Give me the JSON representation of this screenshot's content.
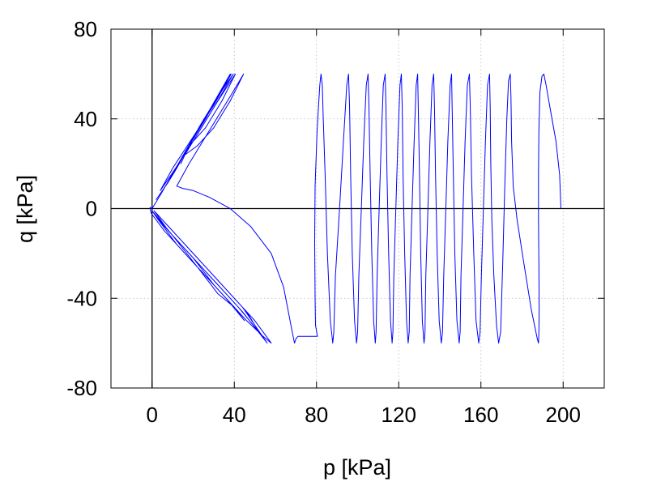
{
  "chart_data": {
    "type": "line",
    "xlabel": "p [kPa]",
    "ylabel": "q [kPa]",
    "xlim": [
      -20,
      220
    ],
    "ylim": [
      -80,
      80
    ],
    "x_ticks": [
      0,
      40,
      80,
      120,
      160,
      200
    ],
    "y_ticks": [
      -80,
      -40,
      0,
      40,
      80
    ],
    "x_tick_labels": [
      "0",
      "40",
      "80",
      "120",
      "160",
      "200"
    ],
    "y_tick_labels": [
      "-80",
      "-40",
      "0",
      "40",
      "80"
    ],
    "grid": true,
    "zero_lines": true,
    "line_color": "#0000ff",
    "series": [
      {
        "values": [
          [
            198.9,
            0
          ],
          [
            198.3,
            15
          ],
          [
            196.5,
            30
          ],
          [
            193.6,
            45
          ],
          [
            191.7,
            55
          ],
          [
            190.6,
            60
          ],
          [
            189.7,
            59
          ],
          [
            188.7,
            52
          ],
          [
            188.2,
            35
          ],
          [
            188.0,
            15
          ],
          [
            188.0,
            -5
          ],
          [
            188.2,
            -25
          ],
          [
            188.3,
            -45
          ],
          [
            188.2,
            -55
          ],
          [
            188.0,
            -60
          ],
          [
            187.4,
            -58
          ],
          [
            184.5,
            -45
          ],
          [
            181.0,
            -25
          ],
          [
            177.6,
            -5
          ],
          [
            175.7,
            10
          ],
          [
            174.9,
            30
          ],
          [
            174.6,
            50
          ],
          [
            174.3,
            60
          ],
          [
            173.4,
            57
          ],
          [
            172.6,
            40
          ],
          [
            171.6,
            10
          ],
          [
            170.6,
            -25
          ],
          [
            169.6,
            -55
          ],
          [
            168.6,
            -60
          ],
          [
            167.6,
            -52
          ],
          [
            166.3,
            -30
          ],
          [
            165.3,
            -5
          ],
          [
            164.8,
            20
          ],
          [
            164.5,
            45
          ],
          [
            164.2,
            60
          ],
          [
            163.2,
            55
          ],
          [
            162.2,
            30
          ],
          [
            161.2,
            0
          ],
          [
            160.2,
            -30
          ],
          [
            159.6,
            -55
          ],
          [
            158.9,
            -60
          ],
          [
            157.6,
            -50
          ],
          [
            156.5,
            -20
          ],
          [
            155.4,
            15
          ],
          [
            154.8,
            45
          ],
          [
            154.4,
            60
          ],
          [
            153.4,
            55
          ],
          [
            152.3,
            30
          ],
          [
            151.3,
            0
          ],
          [
            150.3,
            -30
          ],
          [
            149.9,
            -55
          ],
          [
            149.4,
            -60
          ],
          [
            148.3,
            -50
          ],
          [
            147.3,
            -20
          ],
          [
            146.6,
            15
          ],
          [
            146.0,
            45
          ],
          [
            145.7,
            60
          ],
          [
            145.0,
            55
          ],
          [
            143.9,
            30
          ],
          [
            142.9,
            0
          ],
          [
            141.9,
            -30
          ],
          [
            141.3,
            -55
          ],
          [
            140.7,
            -60
          ],
          [
            139.7,
            -50
          ],
          [
            138.7,
            -20
          ],
          [
            137.9,
            15
          ],
          [
            137.4,
            45
          ],
          [
            137.0,
            60
          ],
          [
            136.2,
            55
          ],
          [
            135.2,
            30
          ],
          [
            134.2,
            0
          ],
          [
            133.2,
            -30
          ],
          [
            132.8,
            -55
          ],
          [
            132.3,
            -60
          ],
          [
            131.5,
            -50
          ],
          [
            130.7,
            -20
          ],
          [
            130.1,
            15
          ],
          [
            129.5,
            45
          ],
          [
            129.2,
            60
          ],
          [
            128.5,
            55
          ],
          [
            127.5,
            30
          ],
          [
            126.5,
            0
          ],
          [
            125.5,
            -30
          ],
          [
            125.1,
            -55
          ],
          [
            124.6,
            -60
          ],
          [
            123.8,
            -50
          ],
          [
            122.9,
            -20
          ],
          [
            122.1,
            15
          ],
          [
            121.7,
            45
          ],
          [
            121.3,
            60
          ],
          [
            120.6,
            55
          ],
          [
            119.6,
            30
          ],
          [
            118.6,
            0
          ],
          [
            117.6,
            -30
          ],
          [
            117.2,
            -55
          ],
          [
            116.8,
            -60
          ],
          [
            116.0,
            -50
          ],
          [
            115.1,
            -20
          ],
          [
            114.3,
            15
          ],
          [
            113.8,
            45
          ],
          [
            113.4,
            60
          ],
          [
            112.5,
            55
          ],
          [
            111.5,
            30
          ],
          [
            110.5,
            0
          ],
          [
            109.5,
            -30
          ],
          [
            109.0,
            -55
          ],
          [
            108.6,
            -60
          ],
          [
            107.8,
            -50
          ],
          [
            106.9,
            -20
          ],
          [
            106.1,
            15
          ],
          [
            105.5,
            45
          ],
          [
            105.1,
            60
          ],
          [
            104.2,
            55
          ],
          [
            103.0,
            30
          ],
          [
            101.8,
            0
          ],
          [
            100.6,
            -30
          ],
          [
            100.0,
            -55
          ],
          [
            99.5,
            -60
          ],
          [
            98.5,
            -50
          ],
          [
            97.4,
            -20
          ],
          [
            96.6,
            15
          ],
          [
            96.1,
            45
          ],
          [
            95.6,
            60
          ],
          [
            94.7,
            55
          ],
          [
            93.1,
            30
          ],
          [
            91.2,
            0
          ],
          [
            89.2,
            -30
          ],
          [
            88.4,
            -55
          ],
          [
            87.9,
            -60
          ],
          [
            86.7,
            -50
          ],
          [
            85.3,
            -20
          ],
          [
            84.2,
            15
          ],
          [
            83.3,
            40
          ],
          [
            82.8,
            55
          ],
          [
            82.2,
            60
          ],
          [
            81.6,
            55
          ],
          [
            80.3,
            35
          ],
          [
            79.3,
            10
          ],
          [
            79.1,
            -15
          ],
          [
            79.3,
            -40
          ],
          [
            79.5,
            -52
          ],
          [
            80.1,
            -55
          ],
          [
            80.4,
            -57
          ],
          [
            78.0,
            -57
          ],
          [
            74.0,
            -57
          ],
          [
            71.0,
            -57
          ],
          [
            70.0,
            -58
          ],
          [
            69.3,
            -60
          ],
          [
            68.2,
            -55
          ],
          [
            64.0,
            -35
          ],
          [
            58.0,
            -20
          ],
          [
            48.0,
            -8
          ],
          [
            38.0,
            0
          ],
          [
            28.0,
            5
          ],
          [
            20.0,
            8
          ],
          [
            15.0,
            9
          ],
          [
            12.0,
            10
          ],
          [
            18.0,
            20
          ],
          [
            28.0,
            35
          ],
          [
            38.0,
            50
          ],
          [
            44.5,
            60
          ],
          [
            38.0,
            48
          ],
          [
            30.0,
            36
          ],
          [
            22.0,
            28
          ],
          [
            16.0,
            24
          ],
          [
            14.0,
            20
          ],
          [
            16.0,
            24
          ],
          [
            24.0,
            36
          ],
          [
            32.0,
            48
          ],
          [
            40.5,
            60
          ],
          [
            34.0,
            48
          ],
          [
            26.0,
            36
          ],
          [
            18.0,
            28
          ],
          [
            12.0,
            18
          ],
          [
            8.0,
            12
          ],
          [
            14.0,
            22
          ],
          [
            24.0,
            38
          ],
          [
            32.0,
            50
          ],
          [
            39.5,
            60
          ],
          [
            30.0,
            45
          ],
          [
            20.0,
            30
          ],
          [
            10.0,
            16
          ],
          [
            4.0,
            8
          ],
          [
            10.0,
            18
          ],
          [
            20.0,
            32
          ],
          [
            30.0,
            46
          ],
          [
            38.5,
            60
          ],
          [
            28.0,
            44
          ],
          [
            18.0,
            28
          ],
          [
            8.0,
            12
          ],
          [
            2.0,
            4
          ],
          [
            8.0,
            12
          ],
          [
            18.0,
            28
          ],
          [
            28.0,
            44
          ],
          [
            38.0,
            60
          ],
          [
            26.0,
            40
          ],
          [
            14.0,
            22
          ],
          [
            4.0,
            6
          ],
          [
            0.0,
            0
          ],
          [
            -1.0,
            0.5
          ],
          [
            -0.5,
            -2
          ],
          [
            6.0,
            -10
          ],
          [
            14.0,
            -18
          ],
          [
            24.0,
            -28
          ],
          [
            36.0,
            -40
          ],
          [
            46.0,
            -50
          ],
          [
            54.0,
            -57
          ],
          [
            58.0,
            -60
          ],
          [
            50.0,
            -50
          ],
          [
            40.0,
            -40
          ],
          [
            28.0,
            -28
          ],
          [
            16.0,
            -16
          ],
          [
            6.0,
            -6
          ],
          [
            1.0,
            -1
          ],
          [
            8.0,
            -8
          ],
          [
            20.0,
            -20
          ],
          [
            32.0,
            -32
          ],
          [
            44.0,
            -44
          ],
          [
            56.0,
            -60
          ],
          [
            44.0,
            -46
          ],
          [
            32.0,
            -34
          ],
          [
            20.0,
            -22
          ],
          [
            8.0,
            -10
          ],
          [
            1.0,
            -1
          ],
          [
            10.0,
            -10
          ],
          [
            22.0,
            -22
          ],
          [
            34.0,
            -34
          ],
          [
            46.0,
            -46
          ],
          [
            52.0,
            -55
          ],
          [
            42.0,
            -44
          ],
          [
            30.0,
            -32
          ],
          [
            18.0,
            -20
          ],
          [
            6.0,
            -8
          ],
          [
            0.0,
            -1
          ],
          [
            8.0,
            -10
          ],
          [
            20.0,
            -22
          ],
          [
            30.0,
            -34
          ],
          [
            40.0,
            -44
          ],
          [
            45.0,
            -50
          ],
          [
            36.0,
            -40
          ],
          [
            24.0,
            -28
          ],
          [
            12.0,
            -16
          ],
          [
            3.0,
            -5
          ],
          [
            0.0,
            -1
          ],
          [
            10.0,
            -12
          ],
          [
            22.0,
            -26
          ],
          [
            32.0,
            -38
          ],
          [
            40.0,
            -44
          ]
        ]
      }
    ]
  }
}
